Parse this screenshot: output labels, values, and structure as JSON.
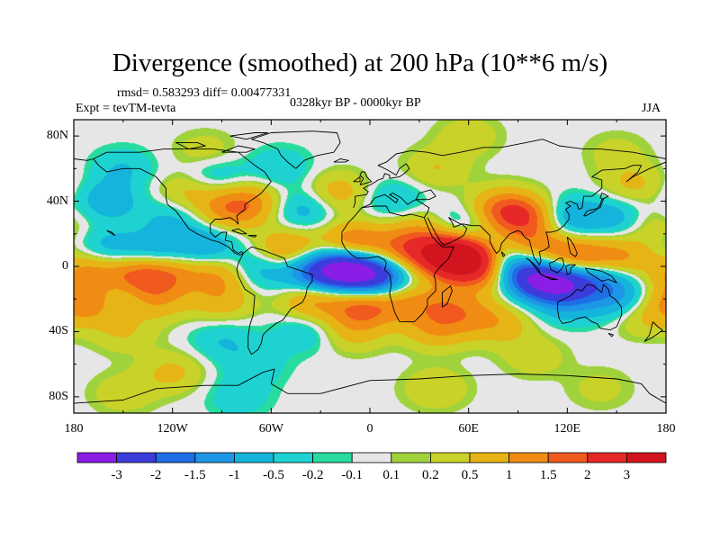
{
  "header": {
    "title": "Divergence (smoothed) at 200 hPa (10**6 m/s)",
    "stats": "rmsd= 0.583293 diff= 0.00477331",
    "experiment": "Expt = tevTM-tevta",
    "period": "0328kyr BP - 0000kyr BP",
    "season": "JJA"
  },
  "map": {
    "projection": "cylindrical-equidistant",
    "lon_range": [
      -180,
      180
    ],
    "lat_range": [
      -90,
      90
    ],
    "x_ticks": [
      {
        "lon": -180,
        "label": "180"
      },
      {
        "lon": -120,
        "label": "120W"
      },
      {
        "lon": -60,
        "label": "60W"
      },
      {
        "lon": 0,
        "label": "0"
      },
      {
        "lon": 60,
        "label": "60E"
      },
      {
        "lon": 120,
        "label": "120E"
      },
      {
        "lon": 180,
        "label": "180"
      }
    ],
    "y_ticks": [
      {
        "lat": 80,
        "label": "80N"
      },
      {
        "lat": 40,
        "label": "40N"
      },
      {
        "lat": 0,
        "label": "0"
      },
      {
        "lat": -40,
        "label": "40S"
      },
      {
        "lat": -80,
        "label": "80S"
      }
    ],
    "background_color": "#e6e6e6",
    "coastline_color": "#000000"
  },
  "colorbar": {
    "labels": [
      "-3",
      "-2",
      "-1.5",
      "-1",
      "-0.5",
      "-0.2",
      "-0.1",
      "0.1",
      "0.2",
      "0.5",
      "1",
      "1.5",
      "2",
      "3"
    ],
    "colors": [
      "#8a1ee6",
      "#3c3cdc",
      "#1e6ee6",
      "#1e96e6",
      "#14b4dc",
      "#1ed2d2",
      "#28dca0",
      "#e6e6e6",
      "#a0d23c",
      "#c8d228",
      "#e6b414",
      "#f08c14",
      "#f05a1e",
      "#e62828",
      "#d2141e"
    ]
  },
  "chart_data": {
    "type": "contour-map",
    "variable": "Divergence (smoothed) at 200 hPa",
    "units": "10**6 m/s",
    "levels": [
      -3,
      -2,
      -1.5,
      -1,
      -0.5,
      -0.2,
      -0.1,
      0.1,
      0.2,
      0.5,
      1,
      1.5,
      2,
      3
    ],
    "features": [
      {
        "lon": -15,
        "lat": -2,
        "value": -3.2
      },
      {
        "lon": 5,
        "lat": -6,
        "value": -2.2
      },
      {
        "lon": -35,
        "lat": -4,
        "value": -1.6
      },
      {
        "lon": 115,
        "lat": -10,
        "value": -3.0
      },
      {
        "lon": 95,
        "lat": -6,
        "value": -2.2
      },
      {
        "lon": 78,
        "lat": 2,
        "value": -1.6
      },
      {
        "lon": 140,
        "lat": -6,
        "value": -1.4
      },
      {
        "lon": 60,
        "lat": 4,
        "value": 3.0
      },
      {
        "lon": 48,
        "lat": 6,
        "value": 2.0
      },
      {
        "lon": 75,
        "lat": -4,
        "value": 1.6
      },
      {
        "lon": 100,
        "lat": 12,
        "value": 1.2
      },
      {
        "lon": 125,
        "lat": 4,
        "value": 1.8
      },
      {
        "lon": 150,
        "lat": 4,
        "value": 1.3
      },
      {
        "lon": -10,
        "lat": 14,
        "value": 1.6
      },
      {
        "lon": 20,
        "lat": 10,
        "value": 1.3
      },
      {
        "lon": 40,
        "lat": 10,
        "value": 1.0
      },
      {
        "lon": -50,
        "lat": 10,
        "value": 1.2
      },
      {
        "lon": -70,
        "lat": -2,
        "value": -0.9
      },
      {
        "lon": -100,
        "lat": 12,
        "value": -1.0
      },
      {
        "lon": -130,
        "lat": 8,
        "value": -1.0
      },
      {
        "lon": -160,
        "lat": 10,
        "value": -0.8
      },
      {
        "lon": -170,
        "lat": -3,
        "value": 1.2
      },
      {
        "lon": -140,
        "lat": -5,
        "value": 1.6
      },
      {
        "lon": -120,
        "lat": -3,
        "value": 1.0
      },
      {
        "lon": -90,
        "lat": -5,
        "value": 1.1
      },
      {
        "lon": -155,
        "lat": -18,
        "value": -0.6
      },
      {
        "lon": -170,
        "lat": -22,
        "value": 1.4
      },
      {
        "lon": -130,
        "lat": -20,
        "value": 0.9
      },
      {
        "lon": -90,
        "lat": -22,
        "value": 0.7
      },
      {
        "lon": -35,
        "lat": -20,
        "value": 1.2
      },
      {
        "lon": -5,
        "lat": -25,
        "value": 1.5
      },
      {
        "lon": 20,
        "lat": -22,
        "value": 0.9
      },
      {
        "lon": 45,
        "lat": -22,
        "value": 0.8
      },
      {
        "lon": 60,
        "lat": -30,
        "value": 0.7
      },
      {
        "lon": -40,
        "lat": -40,
        "value": -0.5
      },
      {
        "lon": -10,
        "lat": -40,
        "value": 0.6
      },
      {
        "lon": 40,
        "lat": -38,
        "value": 0.9
      },
      {
        "lon": 80,
        "lat": -35,
        "value": 0.7
      },
      {
        "lon": 120,
        "lat": -25,
        "value": -0.5
      },
      {
        "lon": 150,
        "lat": -20,
        "value": -1.0
      },
      {
        "lon": 165,
        "lat": -30,
        "value": 0.6
      },
      {
        "lon": -90,
        "lat": -45,
        "value": -0.5
      },
      {
        "lon": -150,
        "lat": -40,
        "value": 0.5
      },
      {
        "lon": -160,
        "lat": 40,
        "value": -0.8
      },
      {
        "lon": -120,
        "lat": 30,
        "value": -0.6
      },
      {
        "lon": -85,
        "lat": 35,
        "value": 1.2
      },
      {
        "lon": -110,
        "lat": 45,
        "value": 0.7
      },
      {
        "lon": -95,
        "lat": 55,
        "value": -0.6
      },
      {
        "lon": -70,
        "lat": 40,
        "value": 0.8
      },
      {
        "lon": -40,
        "lat": 35,
        "value": -0.8
      },
      {
        "lon": -20,
        "lat": 45,
        "value": 0.8
      },
      {
        "lon": 15,
        "lat": 40,
        "value": -0.6
      },
      {
        "lon": 30,
        "lat": 25,
        "value": 0.6
      },
      {
        "lon": 55,
        "lat": 25,
        "value": -0.7
      },
      {
        "lon": 80,
        "lat": 35,
        "value": 1.3
      },
      {
        "lon": 95,
        "lat": 30,
        "value": 1.6
      },
      {
        "lon": 120,
        "lat": 30,
        "value": -1.0
      },
      {
        "lon": 150,
        "lat": 30,
        "value": -0.8
      },
      {
        "lon": 170,
        "lat": 25,
        "value": 0.5
      },
      {
        "lon": 160,
        "lat": 50,
        "value": 0.6
      },
      {
        "lon": -150,
        "lat": 60,
        "value": -0.5
      },
      {
        "lon": -100,
        "lat": 70,
        "value": 0.4
      },
      {
        "lon": -55,
        "lat": 60,
        "value": -0.5
      },
      {
        "lon": 40,
        "lat": 60,
        "value": 0.5
      },
      {
        "lon": 60,
        "lat": 80,
        "value": 0.4
      },
      {
        "lon": 150,
        "lat": 70,
        "value": 0.3
      },
      {
        "lon": -150,
        "lat": -78,
        "value": 0.4
      },
      {
        "lon": -80,
        "lat": -80,
        "value": -0.4
      },
      {
        "lon": 40,
        "lat": -75,
        "value": 0.5
      },
      {
        "lon": 140,
        "lat": -75,
        "value": 0.3
      },
      {
        "lon": -120,
        "lat": -65,
        "value": 0.6
      },
      {
        "lon": 100,
        "lat": -55,
        "value": 0.4
      },
      {
        "lon": -70,
        "lat": -60,
        "value": -0.4
      }
    ]
  }
}
